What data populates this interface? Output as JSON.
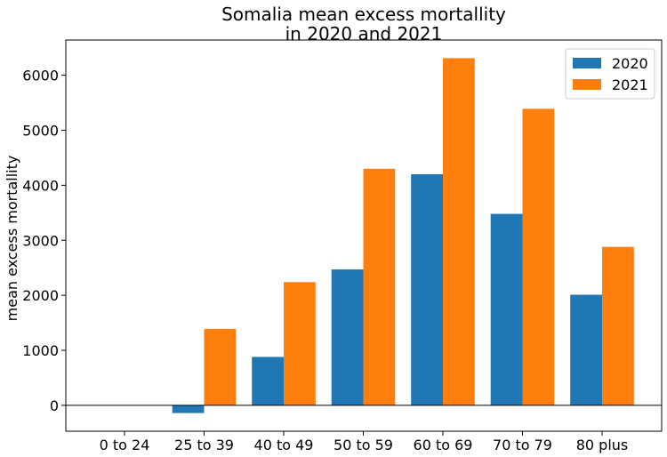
{
  "chart_data": {
    "type": "bar",
    "title_lines": [
      "Somalia mean excess mortallity",
      "in 2020 and 2021"
    ],
    "xlabel": "",
    "ylabel": "mean excess mortallity",
    "categories": [
      "0 to 24",
      "25 to 39",
      "40 to 49",
      "50 to 59",
      "60 to 69",
      "70 to 79",
      "80 plus"
    ],
    "series": [
      {
        "name": "2020",
        "color": "#1f77b4",
        "values": [
          0,
          -140,
          880,
          2470,
          4200,
          3480,
          2010
        ]
      },
      {
        "name": "2021",
        "color": "#ff7f0e",
        "values": [
          0,
          1390,
          2240,
          4300,
          6310,
          5390,
          2880
        ]
      }
    ],
    "ylim": [
      -470,
      6640
    ],
    "yticks": [
      0,
      1000,
      2000,
      3000,
      4000,
      5000,
      6000
    ],
    "zero_line": true,
    "grid": false,
    "legend_position": "top-right"
  }
}
